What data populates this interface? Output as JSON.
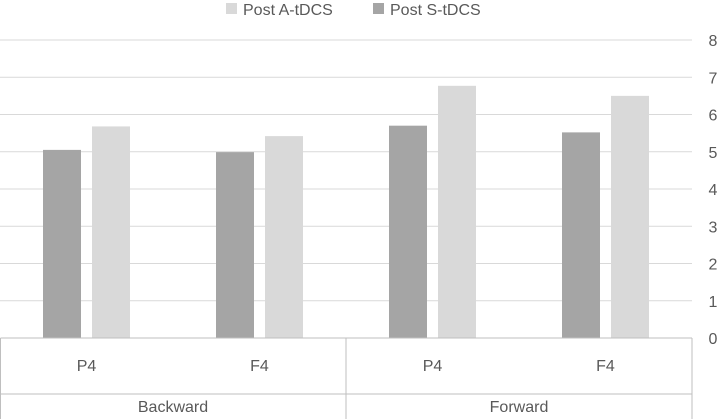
{
  "chart_data": {
    "type": "bar",
    "groups": [
      {
        "label": "Backward",
        "categories": [
          "P4",
          "F4"
        ]
      },
      {
        "label": "Forward",
        "categories": [
          "P4",
          "F4"
        ]
      }
    ],
    "categories": [
      "P4",
      "F4",
      "P4",
      "F4"
    ],
    "series": [
      {
        "name": "Post S-tDCS",
        "values": [
          5.05,
          4.99,
          5.7,
          5.52
        ],
        "color": "#A5A5A5"
      },
      {
        "name": "Post A-tDCS",
        "values": [
          5.68,
          5.42,
          6.77,
          6.5
        ],
        "color": "#D9D9D9"
      }
    ],
    "legend_order": [
      "Post A-tDCS",
      "Post S-tDCS"
    ],
    "legend_position": "top",
    "ylim": [
      0,
      8
    ],
    "yticks": [
      "0",
      "1",
      "2",
      "3",
      "4",
      "5",
      "6",
      "7",
      "8"
    ],
    "y_axis_side": "right",
    "grid": "horizontal",
    "title": "",
    "xlabel": "",
    "ylabel": ""
  }
}
